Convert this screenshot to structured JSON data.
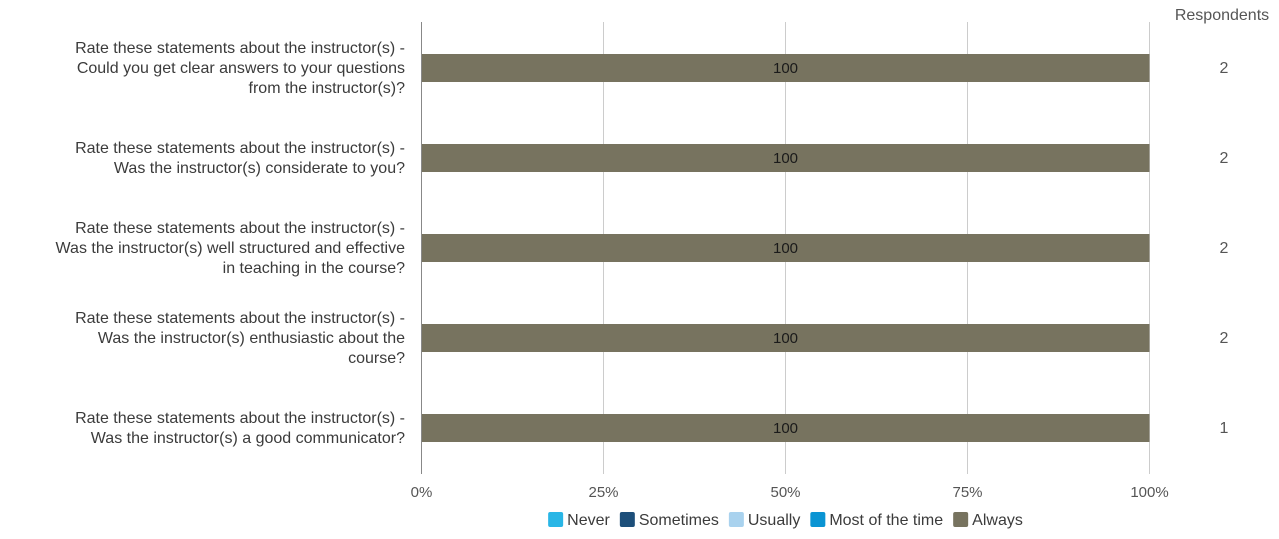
{
  "chart_data": {
    "type": "bar",
    "orientation": "horizontal",
    "stacked": true,
    "percent_scale": true,
    "title": "",
    "xlabel": "",
    "ylabel": "",
    "xlim": [
      0,
      100
    ],
    "x_ticks": [
      "0%",
      "25%",
      "50%",
      "75%",
      "100%"
    ],
    "grid": true,
    "legend_position": "bottom",
    "categories": [
      [
        "Rate these statements about the instructor(s) -",
        "Could you get clear answers to your questions",
        "from the instructor(s)?"
      ],
      [
        "Rate these statements about the instructor(s) -",
        "Was the instructor(s) considerate to you?"
      ],
      [
        "Rate these statements about the instructor(s) -",
        "Was the instructor(s) well structured and effective",
        "in teaching in the course?"
      ],
      [
        "Rate these statements about the instructor(s) -",
        "Was the instructor(s) enthusiastic about the",
        "course?"
      ],
      [
        "Rate these statements about the instructor(s) -",
        "Was the instructor(s) a good communicator?"
      ]
    ],
    "series": [
      {
        "name": "Never",
        "color": "#29b6e6",
        "values": [
          0,
          0,
          0,
          0,
          0
        ]
      },
      {
        "name": "Sometimes",
        "color": "#1d4f7a",
        "values": [
          0,
          0,
          0,
          0,
          0
        ]
      },
      {
        "name": "Usually",
        "color": "#a9d2ee",
        "values": [
          0,
          0,
          0,
          0,
          0
        ]
      },
      {
        "name": "Most of the time",
        "color": "#0a94d3",
        "values": [
          0,
          0,
          0,
          0,
          0
        ]
      },
      {
        "name": "Always",
        "color": "#77735f",
        "values": [
          100,
          100,
          100,
          100,
          100
        ]
      }
    ],
    "respondents_header": "Respondents",
    "respondents": [
      "2",
      "2",
      "2",
      "2",
      "1"
    ]
  }
}
